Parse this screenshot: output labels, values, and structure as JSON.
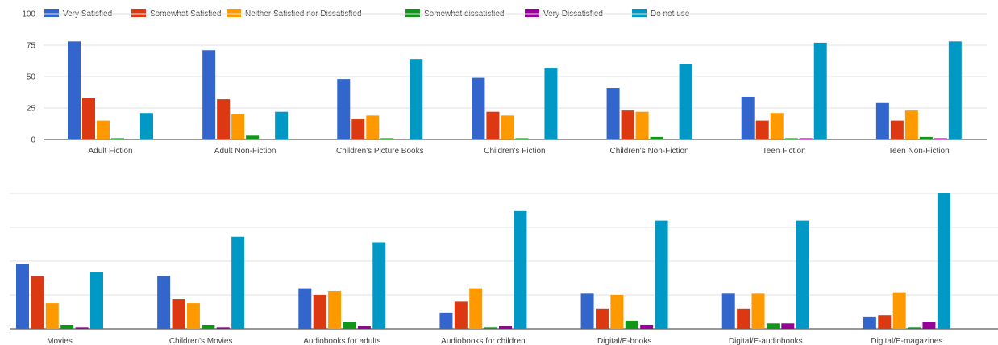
{
  "legend": [
    {
      "label": "Very Satisfied",
      "color": "#3366cc"
    },
    {
      "label": "Somewhat Satisfied",
      "color": "#dc3912"
    },
    {
      "label": "Neither Satisfied nor Dissatisfied",
      "color": "#ff9900"
    },
    {
      "label": "Somewhat dissatisfied",
      "color": "#109618"
    },
    {
      "label": "Very Dissatisfied",
      "color": "#990099"
    },
    {
      "label": "Do not use",
      "color": "#0099c6"
    }
  ],
  "chart_data": [
    {
      "type": "bar",
      "title": "",
      "xlabel": "",
      "ylabel": "",
      "ylim": [
        0,
        100
      ],
      "yticks": [
        "0",
        "25",
        "50",
        "75",
        "100"
      ],
      "grid": true,
      "legend_position": "top",
      "categories": [
        "Adult Fiction",
        "Adult Non-Fiction",
        "Children's Picture Books",
        "Children's Fiction",
        "Children's Non-Fiction",
        "Teen Fiction",
        "Teen Non-Fiction"
      ],
      "series": [
        {
          "name": "Very Satisfied",
          "values": [
            78,
            71,
            48,
            49,
            41,
            34,
            29
          ]
        },
        {
          "name": "Somewhat Satisfied",
          "values": [
            33,
            32,
            16,
            22,
            23,
            15,
            15
          ]
        },
        {
          "name": "Neither Satisfied nor Dissatisfied",
          "values": [
            15,
            20,
            19,
            19,
            22,
            21,
            23
          ]
        },
        {
          "name": "Somewhat dissatisfied",
          "values": [
            1,
            3,
            1,
            1,
            2,
            1,
            2
          ]
        },
        {
          "name": "Very Dissatisfied",
          "values": [
            0,
            0,
            0,
            0,
            0,
            1,
            1
          ]
        },
        {
          "name": "Do not use",
          "values": [
            21,
            22,
            64,
            57,
            60,
            77,
            78
          ]
        }
      ]
    },
    {
      "type": "bar",
      "title": "",
      "xlabel": "",
      "ylabel": "",
      "ylim": [
        0,
        100
      ],
      "yticks": [],
      "grid": true,
      "categories": [
        "Movies",
        "Children's Movies",
        "Audiobooks for adults",
        "Audiobooks for children",
        "Digital/E-books",
        "Digital/E-audiobooks",
        "Digital/E-magazines"
      ],
      "series": [
        {
          "name": "Very Satisfied",
          "values": [
            48,
            39,
            30,
            12,
            26,
            26,
            9
          ]
        },
        {
          "name": "Somewhat Satisfied",
          "values": [
            39,
            22,
            25,
            20,
            15,
            15,
            10
          ]
        },
        {
          "name": "Neither Satisfied nor Dissatisfied",
          "values": [
            19,
            19,
            28,
            30,
            25,
            26,
            27
          ]
        },
        {
          "name": "Somewhat dissatisfied",
          "values": [
            3,
            3,
            5,
            1,
            6,
            4,
            1
          ]
        },
        {
          "name": "Very Dissatisfied",
          "values": [
            1,
            1,
            2,
            2,
            3,
            4,
            5
          ]
        },
        {
          "name": "Do not use",
          "values": [
            42,
            68,
            64,
            87,
            80,
            80,
            100
          ]
        }
      ]
    }
  ]
}
